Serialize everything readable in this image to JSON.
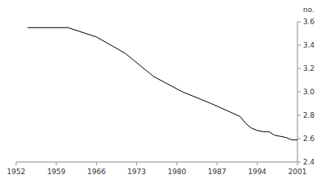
{
  "chart_data": {
    "type": "line",
    "y_label": "no.",
    "x": [
      1954,
      1961,
      1966,
      1971,
      1976,
      1981,
      1986,
      1991,
      1992,
      1993,
      1994,
      1995,
      1996,
      1997,
      1998,
      1999,
      2000,
      2001
    ],
    "values": [
      3.55,
      3.55,
      3.47,
      3.33,
      3.13,
      3.0,
      2.9,
      2.79,
      2.73,
      2.69,
      2.67,
      2.66,
      2.66,
      2.63,
      2.62,
      2.61,
      2.59,
      2.59
    ],
    "color": "#000000",
    "xlim": [
      1952,
      2001
    ],
    "xticks": [
      1952,
      1959,
      1966,
      1973,
      1980,
      1987,
      1994,
      2001
    ],
    "ylim": [
      2.4,
      3.6
    ],
    "yticks": [
      2.4,
      2.6,
      2.8,
      {
        "value": 3,
        "label": "3.0"
      },
      3.2,
      3.4,
      3.6
    ]
  }
}
